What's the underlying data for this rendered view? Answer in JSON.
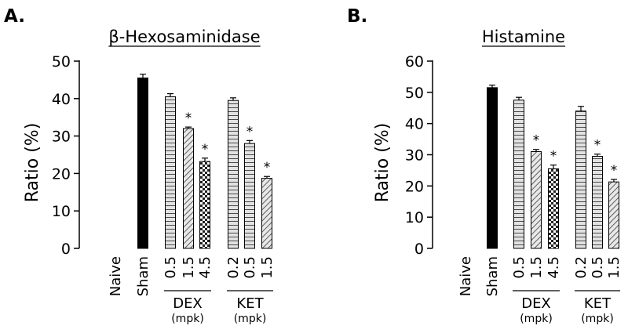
{
  "patterns": {
    "naive": "none",
    "sham": "solid-black",
    "0.5": "horizontal-stripes",
    "1.5": "diagonal-stripes",
    "4.5": "checkerboard",
    "0.2": "horizontal-stripes"
  },
  "significance_marker": "*",
  "chart_data": [
    {
      "type": "bar",
      "panel_label": "A.",
      "title": "β-Hexosaminidase",
      "ylabel": "Ratio (%)",
      "ylim": [
        0,
        50
      ],
      "yticks": [
        0,
        10,
        20,
        30,
        40,
        50
      ],
      "categories": [
        "Naive",
        "Sham",
        "0.5",
        "1.5",
        "4.5",
        "0.2",
        "0.5",
        "1.5"
      ],
      "values": [
        0,
        45.5,
        40.5,
        32,
        23.2,
        39.5,
        28,
        18.7
      ],
      "errors": [
        0,
        1.0,
        0.8,
        0.4,
        0.9,
        0.7,
        0.8,
        0.5
      ],
      "significant": [
        false,
        false,
        false,
        true,
        true,
        false,
        true,
        true
      ],
      "groups": [
        {
          "label": "DEX",
          "unit": "(mpk)",
          "start": 2,
          "end": 4
        },
        {
          "label": "KET",
          "unit": "(mpk)",
          "start": 5,
          "end": 7
        }
      ]
    },
    {
      "type": "bar",
      "panel_label": "B.",
      "title": "Histamine",
      "ylabel": "Ratio (%)",
      "ylim": [
        0,
        60
      ],
      "yticks": [
        0,
        10,
        20,
        30,
        40,
        50,
        60
      ],
      "categories": [
        "Naive",
        "Sham",
        "0.5",
        "1.5",
        "4.5",
        "0.2",
        "0.5",
        "1.5"
      ],
      "values": [
        0,
        51.5,
        47.5,
        31,
        25.5,
        44,
        29.5,
        21.3
      ],
      "errors": [
        0,
        0.8,
        0.9,
        0.7,
        1.2,
        1.5,
        0.7,
        0.8
      ],
      "significant": [
        false,
        false,
        false,
        true,
        true,
        false,
        true,
        true
      ],
      "groups": [
        {
          "label": "DEX",
          "unit": "(mpk)",
          "start": 2,
          "end": 4
        },
        {
          "label": "KET",
          "unit": "(mpk)",
          "start": 5,
          "end": 7
        }
      ]
    }
  ]
}
